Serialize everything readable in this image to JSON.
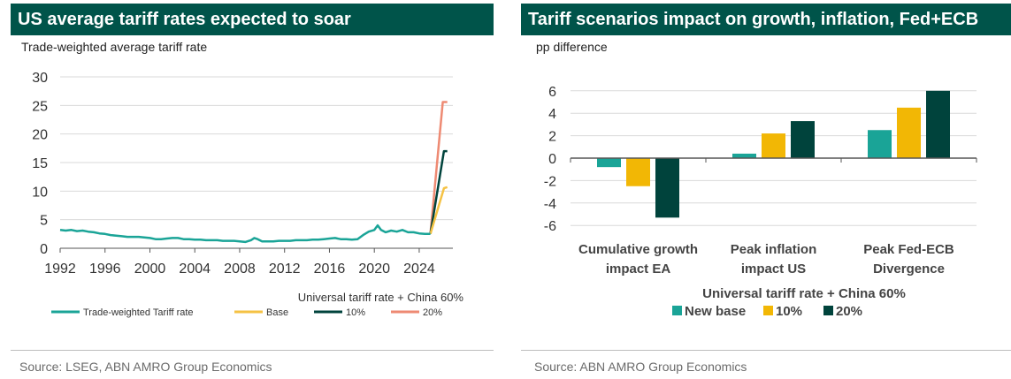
{
  "left": {
    "title": "US average tariff rates expected to soar",
    "subtitle": "Trade-weighted average tariff rate",
    "legend_title": "Universal tariff rate + China 60%",
    "source": "Source: LSEG, ABN AMRO Group Economics"
  },
  "right": {
    "title": "Tariff scenarios impact on growth, inflation, Fed+ECB",
    "subtitle": "pp difference",
    "legend_title": "Universal tariff rate + China 60%",
    "source": "Source: ABN AMRO Group Economics"
  },
  "colors": {
    "title_bg": "#00544a",
    "teal": "#1aa497",
    "yellow": "#f5c244",
    "dark": "#00433c",
    "salmon": "#ee8a73",
    "bar_yellow": "#f2b705",
    "grid": "#d9d9d9",
    "axis_text": "#333333"
  },
  "chart_data": [
    {
      "type": "line",
      "title": "US average tariff rates expected to soar",
      "ylabel": "Trade-weighted average tariff rate",
      "xlim": [
        1992,
        2027
      ],
      "ylim": [
        0,
        30
      ],
      "x_ticks": [
        1992,
        1996,
        2000,
        2004,
        2008,
        2012,
        2016,
        2020,
        2024
      ],
      "y_ticks": [
        0,
        5,
        10,
        15,
        20,
        25,
        30
      ],
      "grid": "horizontal",
      "legend_position": "bottom",
      "legend_title": "Universal tariff rate + China 60%",
      "series": [
        {
          "name": "Trade-weighted Tariff rate",
          "color": "#1aa497",
          "points": [
            [
              1992.0,
              3.2
            ],
            [
              1992.5,
              3.1
            ],
            [
              1993.0,
              3.2
            ],
            [
              1993.5,
              3.0
            ],
            [
              1994.0,
              3.1
            ],
            [
              1994.5,
              2.9
            ],
            [
              1995.0,
              2.8
            ],
            [
              1995.5,
              2.6
            ],
            [
              1996.0,
              2.5
            ],
            [
              1996.5,
              2.3
            ],
            [
              1997.0,
              2.2
            ],
            [
              1997.5,
              2.1
            ],
            [
              1998.0,
              2.0
            ],
            [
              1998.5,
              2.0
            ],
            [
              1999.0,
              2.0
            ],
            [
              1999.5,
              1.9
            ],
            [
              2000.0,
              1.8
            ],
            [
              2000.5,
              1.6
            ],
            [
              2001.0,
              1.6
            ],
            [
              2001.5,
              1.7
            ],
            [
              2002.0,
              1.8
            ],
            [
              2002.5,
              1.8
            ],
            [
              2003.0,
              1.6
            ],
            [
              2003.5,
              1.6
            ],
            [
              2004.0,
              1.5
            ],
            [
              2004.5,
              1.5
            ],
            [
              2005.0,
              1.4
            ],
            [
              2005.5,
              1.4
            ],
            [
              2006.0,
              1.4
            ],
            [
              2006.5,
              1.3
            ],
            [
              2007.0,
              1.3
            ],
            [
              2007.5,
              1.3
            ],
            [
              2008.0,
              1.2
            ],
            [
              2008.5,
              1.1
            ],
            [
              2009.0,
              1.4
            ],
            [
              2009.3,
              1.8
            ],
            [
              2009.6,
              1.6
            ],
            [
              2010.0,
              1.2
            ],
            [
              2010.5,
              1.2
            ],
            [
              2011.0,
              1.2
            ],
            [
              2011.5,
              1.3
            ],
            [
              2012.0,
              1.3
            ],
            [
              2012.5,
              1.3
            ],
            [
              2013.0,
              1.4
            ],
            [
              2013.5,
              1.4
            ],
            [
              2014.0,
              1.4
            ],
            [
              2014.5,
              1.5
            ],
            [
              2015.0,
              1.5
            ],
            [
              2015.5,
              1.6
            ],
            [
              2016.0,
              1.7
            ],
            [
              2016.5,
              1.8
            ],
            [
              2017.0,
              1.6
            ],
            [
              2017.5,
              1.6
            ],
            [
              2018.0,
              1.5
            ],
            [
              2018.5,
              1.6
            ],
            [
              2019.0,
              2.3
            ],
            [
              2019.5,
              2.9
            ],
            [
              2020.0,
              3.2
            ],
            [
              2020.3,
              4.0
            ],
            [
              2020.6,
              3.2
            ],
            [
              2021.0,
              2.8
            ],
            [
              2021.5,
              3.1
            ],
            [
              2022.0,
              2.9
            ],
            [
              2022.5,
              3.2
            ],
            [
              2023.0,
              2.8
            ],
            [
              2023.5,
              2.8
            ],
            [
              2024.0,
              2.6
            ],
            [
              2024.5,
              2.5
            ],
            [
              2025.0,
              2.5
            ]
          ]
        },
        {
          "name": "Base",
          "color": "#f5c244",
          "points": [
            [
              2025.0,
              2.5
            ],
            [
              2026.2,
              10.5
            ],
            [
              2026.5,
              10.7
            ]
          ]
        },
        {
          "name": "10%",
          "color": "#00433c",
          "points": [
            [
              2025.0,
              2.5
            ],
            [
              2026.2,
              17.0
            ],
            [
              2026.5,
              17.0
            ]
          ]
        },
        {
          "name": "20%",
          "color": "#ee8a73",
          "points": [
            [
              2025.0,
              2.5
            ],
            [
              2026.1,
              25.6
            ],
            [
              2026.5,
              25.6
            ]
          ]
        }
      ]
    },
    {
      "type": "bar",
      "title": "Tariff scenarios impact on growth, inflation, Fed+ECB",
      "ylabel": "pp difference",
      "ylim": [
        -6,
        6
      ],
      "y_ticks": [
        6,
        4,
        2,
        0,
        -2,
        -4,
        -6
      ],
      "grid": "horizontal",
      "legend_position": "bottom",
      "legend_title": "Universal tariff rate + China 60%",
      "categories": [
        [
          "Cumulative growth",
          "impact EA"
        ],
        [
          "Peak inflation",
          "impact US"
        ],
        [
          "Peak Fed-ECB",
          "Divergence"
        ]
      ],
      "series": [
        {
          "name": "New base",
          "color": "#1aa497",
          "values": [
            -0.8,
            0.4,
            2.5
          ]
        },
        {
          "name": "10%",
          "color": "#f2b705",
          "values": [
            -2.5,
            2.2,
            4.5
          ]
        },
        {
          "name": "20%",
          "color": "#00433c",
          "values": [
            -5.3,
            3.3,
            6.0
          ]
        }
      ]
    }
  ]
}
